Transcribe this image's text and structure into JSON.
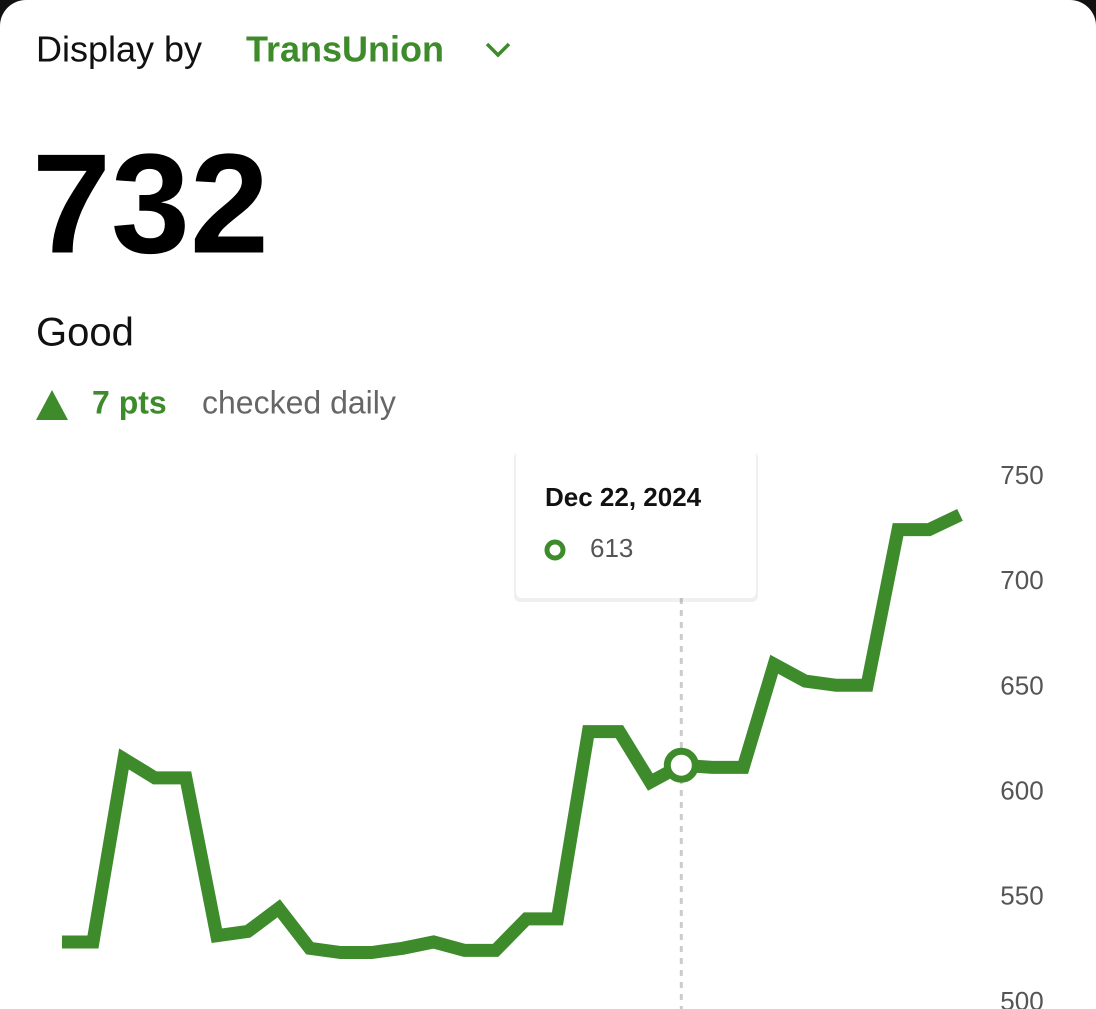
{
  "header": {
    "label": "Display by",
    "provider": "TransUnion"
  },
  "score": 732,
  "rating": "Good",
  "change": {
    "text": "7 pts",
    "note": "checked daily"
  },
  "chart_data": {
    "type": "line",
    "categories": [
      null,
      null,
      null,
      null,
      null,
      null,
      null,
      null,
      null,
      null,
      null,
      null,
      null,
      null,
      null,
      null,
      null,
      null,
      null,
      null,
      "Dec 22, 2024",
      null,
      null,
      null,
      null,
      null,
      null,
      null,
      null,
      null
    ],
    "series": [
      {
        "name": null,
        "color": "#3e8b2c",
        "values": [
          529,
          529,
          616,
          607,
          607,
          532,
          534,
          545,
          526,
          524,
          524,
          526,
          529,
          525,
          525,
          540,
          540,
          629,
          629,
          605,
          613,
          612,
          612,
          661,
          653,
          651,
          651,
          725,
          725,
          732
        ]
      }
    ],
    "ylim": [
      500,
      750
    ],
    "yticks": [
      500,
      550,
      600,
      650,
      700,
      750
    ],
    "grid": false
  }
}
